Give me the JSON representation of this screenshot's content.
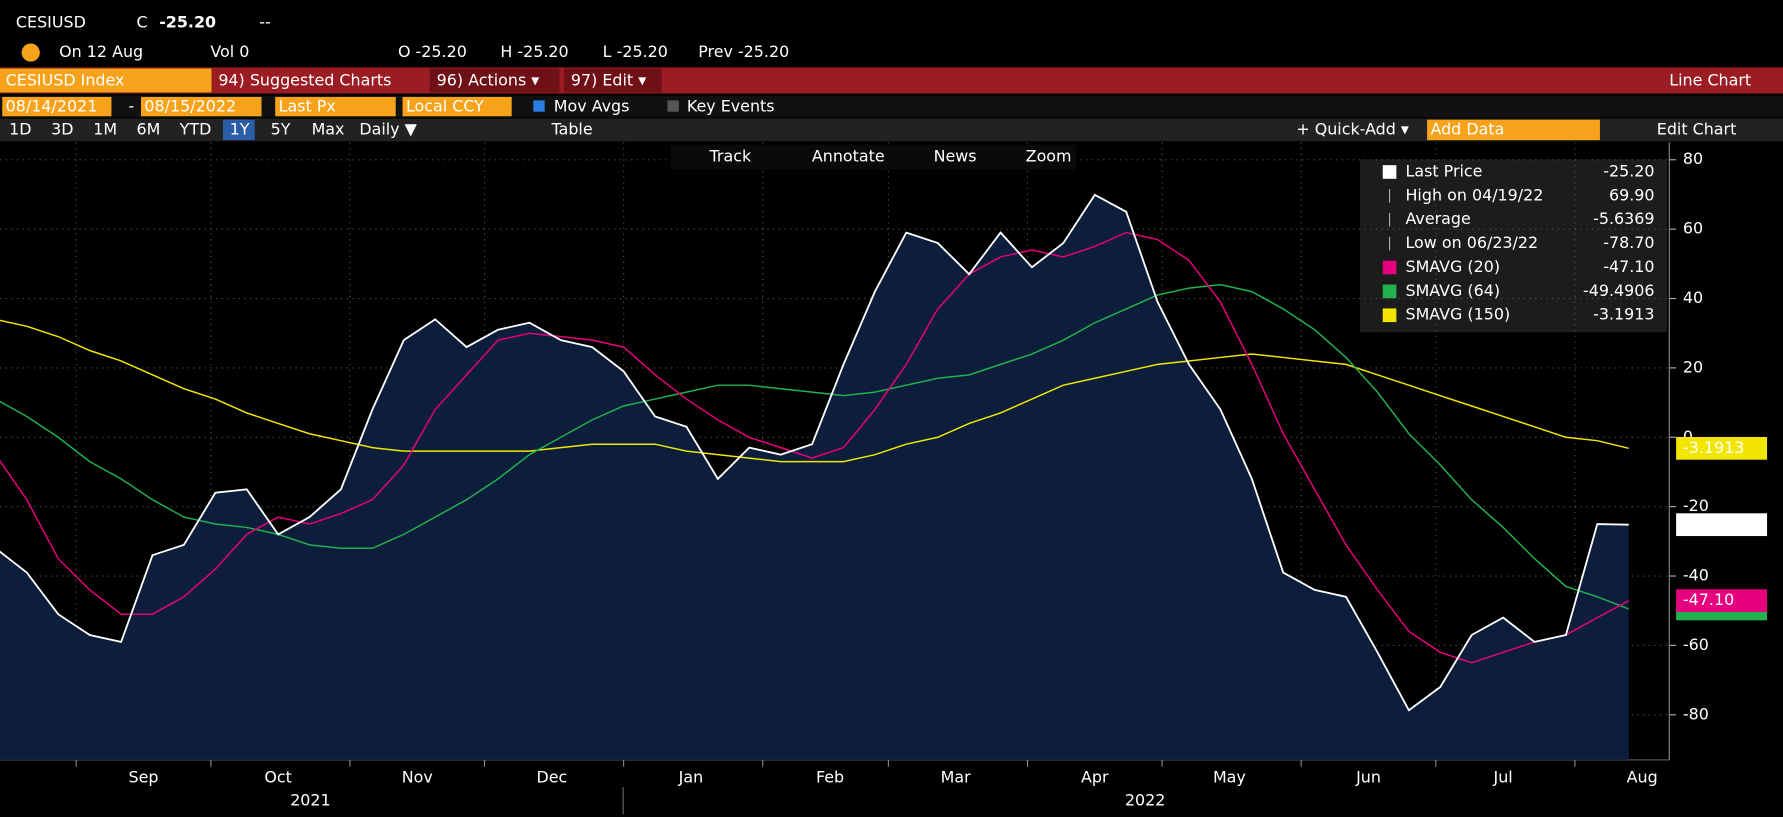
{
  "header": {
    "ticker": "CESIUSD",
    "c": "C",
    "last": "-25.20",
    "change": "--",
    "date": "On 12 Aug",
    "vol": "Vol 0",
    "open": "O -25.20",
    "high": "H -25.20",
    "low": "L -25.20",
    "prev": "Prev -25.20"
  },
  "toolbar": {
    "security": "CESIUSD Index",
    "suggested": "94) Suggested Charts",
    "actions": "96) Actions ▾",
    "edit": "97) Edit ▾",
    "chart_type": "Line Chart",
    "start": "08/14/2021",
    "date_sep": "-",
    "end": "08/15/2022",
    "field": "Last Px",
    "currency": "Local CCY",
    "mov_avgs": "Mov Avgs",
    "key_events": "Key Events",
    "periods": [
      "1D",
      "3D",
      "1M",
      "6M",
      "YTD",
      "1Y",
      "5Y",
      "Max"
    ],
    "frequency": "Daily ▼",
    "table": "Table",
    "quick_add": "+ Quick-Add ▾",
    "add_data": "Add Data",
    "edit_chart": "Edit Chart",
    "tools": [
      "Track",
      "Annotate",
      "News",
      "Zoom"
    ]
  },
  "chart_data": {
    "type": "line",
    "months": [
      "Sep",
      "Oct",
      "Nov",
      "Dec",
      "Jan",
      "Feb",
      "Mar",
      "Apr",
      "May",
      "Jun",
      "Jul",
      "Aug"
    ],
    "years": [
      "2021",
      "2022"
    ],
    "ylim": [
      -93,
      85
    ],
    "yticks": [
      -80,
      -60,
      -40,
      -20,
      0,
      20,
      40,
      60,
      80
    ],
    "grid": true,
    "series": [
      {
        "name": "Last Price",
        "color": "#ffffff",
        "last_label": "-25.20",
        "area": true,
        "values": [
          -32,
          -39,
          -51,
          -57,
          -59,
          -34,
          -31,
          -16,
          -15,
          -28,
          -23,
          -15,
          8,
          28,
          34,
          26,
          31,
          33,
          28,
          26,
          19,
          6,
          3,
          -12,
          -3,
          -5,
          -2,
          21,
          42,
          59,
          56,
          47,
          59,
          49,
          56,
          69.9,
          65,
          39,
          21,
          8,
          -12,
          -39,
          -44,
          -46,
          -62,
          -78.7,
          -72,
          -57,
          -52,
          -59,
          -57,
          -25,
          -25.2
        ]
      },
      {
        "name": "SMAVG (20)",
        "color": "#e6007e",
        "last_label": "-47.10",
        "values": [
          -5,
          -18,
          -35,
          -44,
          -51,
          -51,
          -46,
          -38,
          -28,
          -23,
          -25,
          -22,
          -18,
          -8,
          8,
          18,
          28,
          30,
          29,
          28,
          26,
          18,
          11,
          5,
          0,
          -3,
          -6,
          -3,
          8,
          21,
          37,
          47,
          52,
          54,
          52,
          55,
          59,
          57,
          51,
          39,
          21,
          1,
          -15,
          -31,
          -44,
          -56,
          -62,
          -65,
          -62,
          -59,
          -57,
          -52,
          -47.1
        ]
      },
      {
        "name": "SMAVG (64)",
        "color": "#22b14c",
        "last_label": "-49.4906",
        "values": [
          11,
          6,
          0,
          -7,
          -12,
          -18,
          -23,
          -25,
          -26,
          -28,
          -31,
          -32,
          -32,
          -28,
          -23,
          -18,
          -12,
          -5,
          0,
          5,
          9,
          11,
          13,
          15,
          15,
          14,
          13,
          12,
          13,
          15,
          17,
          18,
          21,
          24,
          28,
          33,
          37,
          41,
          43,
          44,
          42,
          37,
          31,
          23,
          13,
          1,
          -8,
          -18,
          -26,
          -35,
          -43,
          -46,
          -49.4906
        ]
      },
      {
        "name": "SMAVG (150)",
        "color": "#f2e600",
        "last_label": "-3.1913",
        "values": [
          34,
          32,
          29,
          25,
          22,
          18,
          14,
          11,
          7,
          4,
          1,
          -1,
          -3,
          -4,
          -4,
          -4,
          -4,
          -4,
          -3,
          -2,
          -2,
          -2,
          -4,
          -5,
          -6,
          -7,
          -7,
          -7,
          -5,
          -2,
          0,
          4,
          7,
          11,
          15,
          17,
          19,
          21,
          22,
          23,
          24,
          23,
          22,
          21,
          18,
          15,
          12,
          9,
          6,
          3,
          0,
          -1,
          -3.1913
        ]
      }
    ],
    "stats": [
      {
        "label": "High on 04/19/22",
        "value": "69.90"
      },
      {
        "label": "Average",
        "value": "-5.6369"
      },
      {
        "label": "Low on 06/23/22",
        "value": "-78.70"
      }
    ]
  }
}
